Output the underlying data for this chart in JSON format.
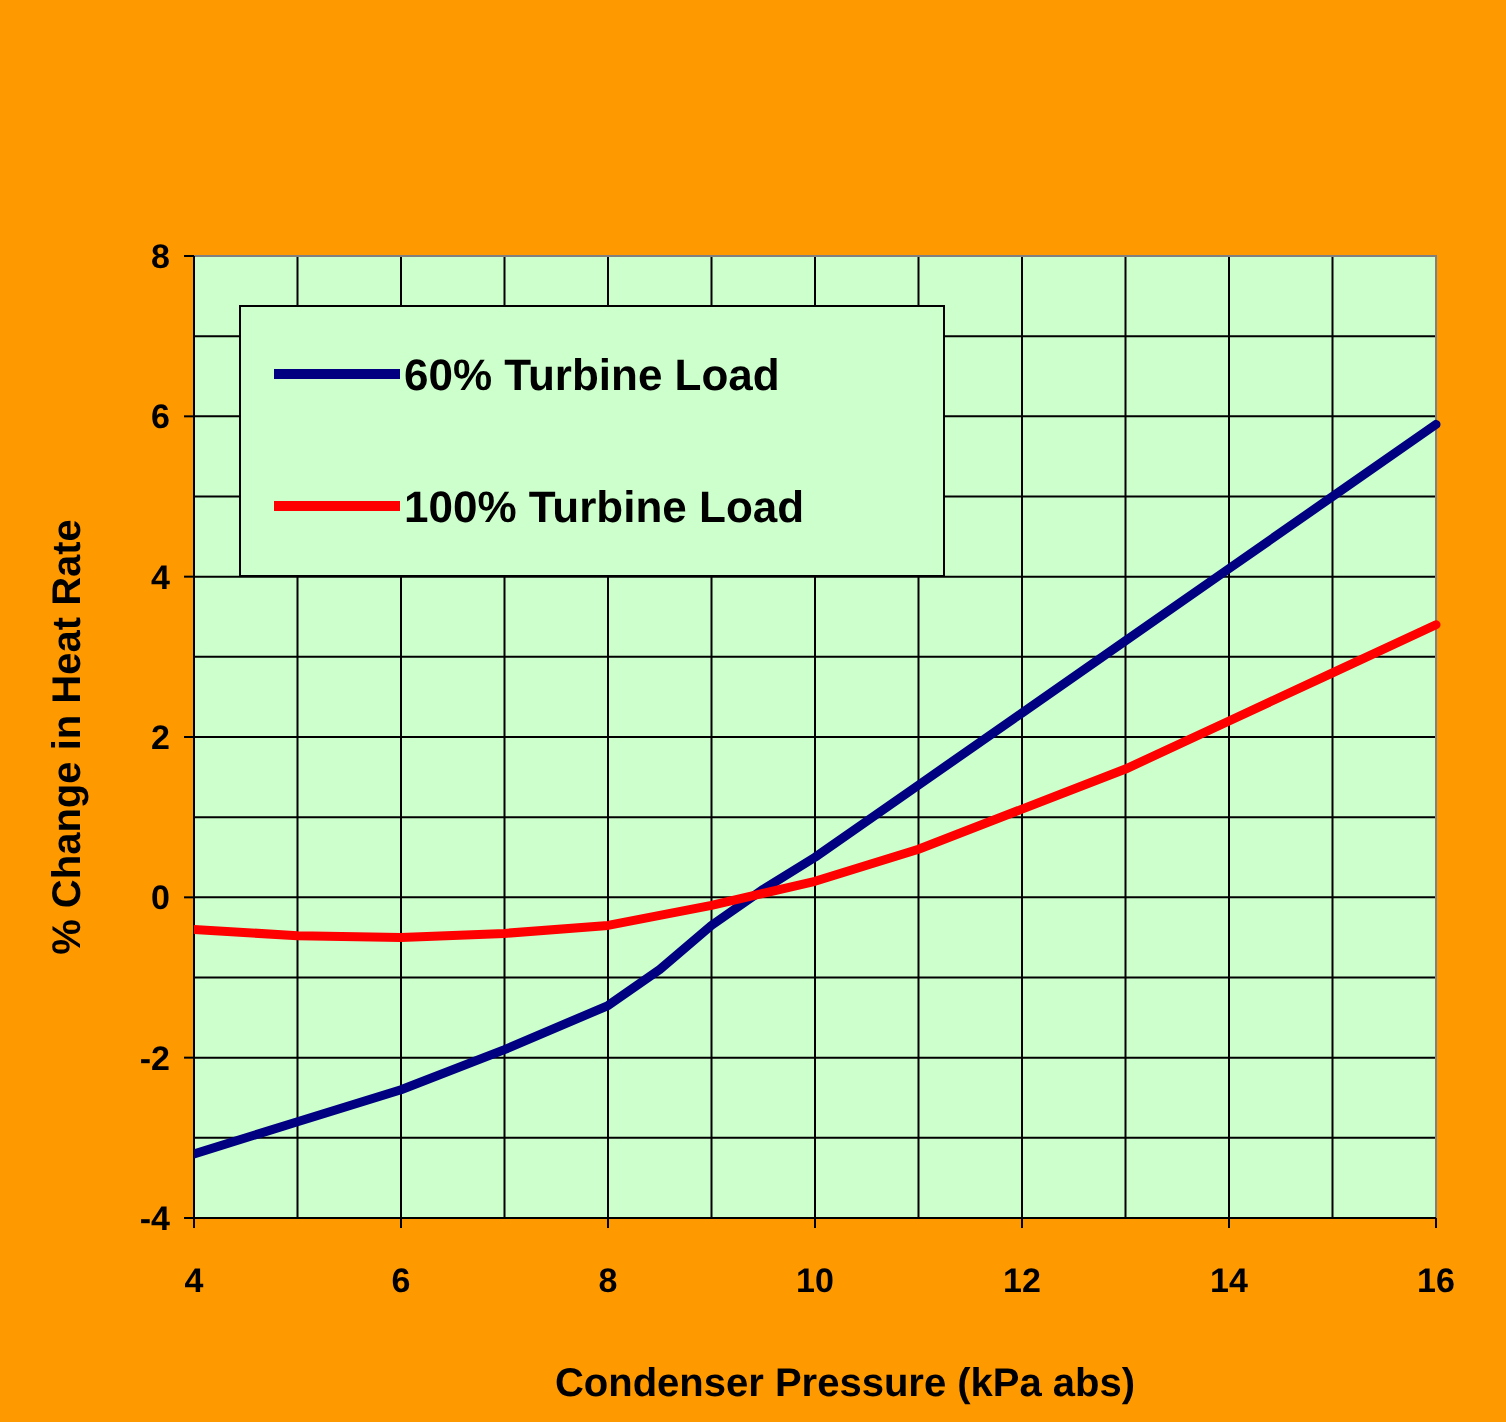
{
  "chart_data": {
    "type": "line",
    "xlabel": "Condenser Pressure (kPa abs)",
    "ylabel": "% Change in Heat Rate",
    "xlim": [
      4,
      16
    ],
    "xticks": [
      4,
      6,
      8,
      10,
      12,
      14,
      16
    ],
    "ylim": [
      -4,
      8
    ],
    "yticks": [
      -4,
      -2,
      0,
      2,
      4,
      6,
      8
    ],
    "grid": true,
    "legend": "top left",
    "line_style": "solid",
    "series": [
      {
        "name": "60% Turbine Load",
        "color": "#000080",
        "x": [
          4,
          5,
          6,
          7,
          8,
          8.5,
          9,
          9.5,
          10,
          11,
          12,
          13,
          14,
          15,
          16
        ],
        "values": [
          -3.2,
          -2.8,
          -2.4,
          -1.9,
          -1.35,
          -0.9,
          -0.35,
          0.1,
          0.5,
          1.4,
          2.3,
          3.2,
          4.1,
          5.0,
          5.9
        ]
      },
      {
        "name": "100% Turbine Load",
        "color": "#ff0000",
        "x": [
          4,
          5,
          6,
          7,
          8,
          9,
          10,
          11,
          12,
          13,
          14,
          15,
          16
        ],
        "values": [
          -0.4,
          -0.48,
          -0.5,
          -0.45,
          -0.35,
          -0.1,
          0.2,
          0.6,
          1.1,
          1.6,
          2.2,
          2.8,
          3.4
        ]
      }
    ]
  }
}
